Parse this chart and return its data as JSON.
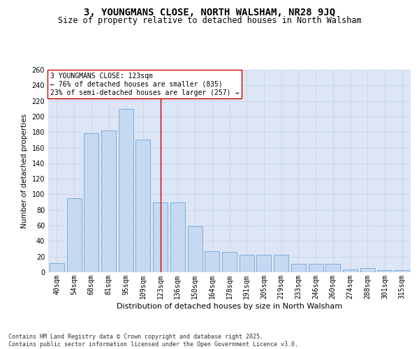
{
  "title": "3, YOUNGMANS CLOSE, NORTH WALSHAM, NR28 9JQ",
  "subtitle": "Size of property relative to detached houses in North Walsham",
  "xlabel": "Distribution of detached houses by size in North Walsham",
  "ylabel": "Number of detached properties",
  "categories": [
    "40sqm",
    "54sqm",
    "68sqm",
    "81sqm",
    "95sqm",
    "109sqm",
    "123sqm",
    "136sqm",
    "150sqm",
    "164sqm",
    "178sqm",
    "191sqm",
    "205sqm",
    "219sqm",
    "233sqm",
    "246sqm",
    "260sqm",
    "274sqm",
    "288sqm",
    "301sqm",
    "315sqm"
  ],
  "values": [
    12,
    95,
    178,
    182,
    210,
    170,
    90,
    90,
    59,
    27,
    26,
    22,
    22,
    22,
    11,
    11,
    11,
    4,
    5,
    3,
    3
  ],
  "bar_color": "#c5d9f0",
  "bar_edge_color": "#6fa8d8",
  "vline_x": 6,
  "vline_color": "#cc0000",
  "annotation_text": "3 YOUNGMANS CLOSE: 123sqm\n← 76% of detached houses are smaller (835)\n23% of semi-detached houses are larger (257) →",
  "annotation_box_color": "#ffffff",
  "annotation_box_edge": "#cc0000",
  "grid_color": "#c8d4e8",
  "background_color": "#dce6f5",
  "fig_background_color": "#ffffff",
  "footer_text": "Contains HM Land Registry data © Crown copyright and database right 2025.\nContains public sector information licensed under the Open Government Licence v3.0.",
  "ylim": [
    0,
    260
  ],
  "yticks": [
    0,
    20,
    40,
    60,
    80,
    100,
    120,
    140,
    160,
    180,
    200,
    220,
    240,
    260
  ],
  "title_fontsize": 10,
  "subtitle_fontsize": 8.5,
  "xlabel_fontsize": 8,
  "ylabel_fontsize": 7.5,
  "tick_fontsize": 7,
  "annotation_fontsize": 7,
  "footer_fontsize": 6
}
